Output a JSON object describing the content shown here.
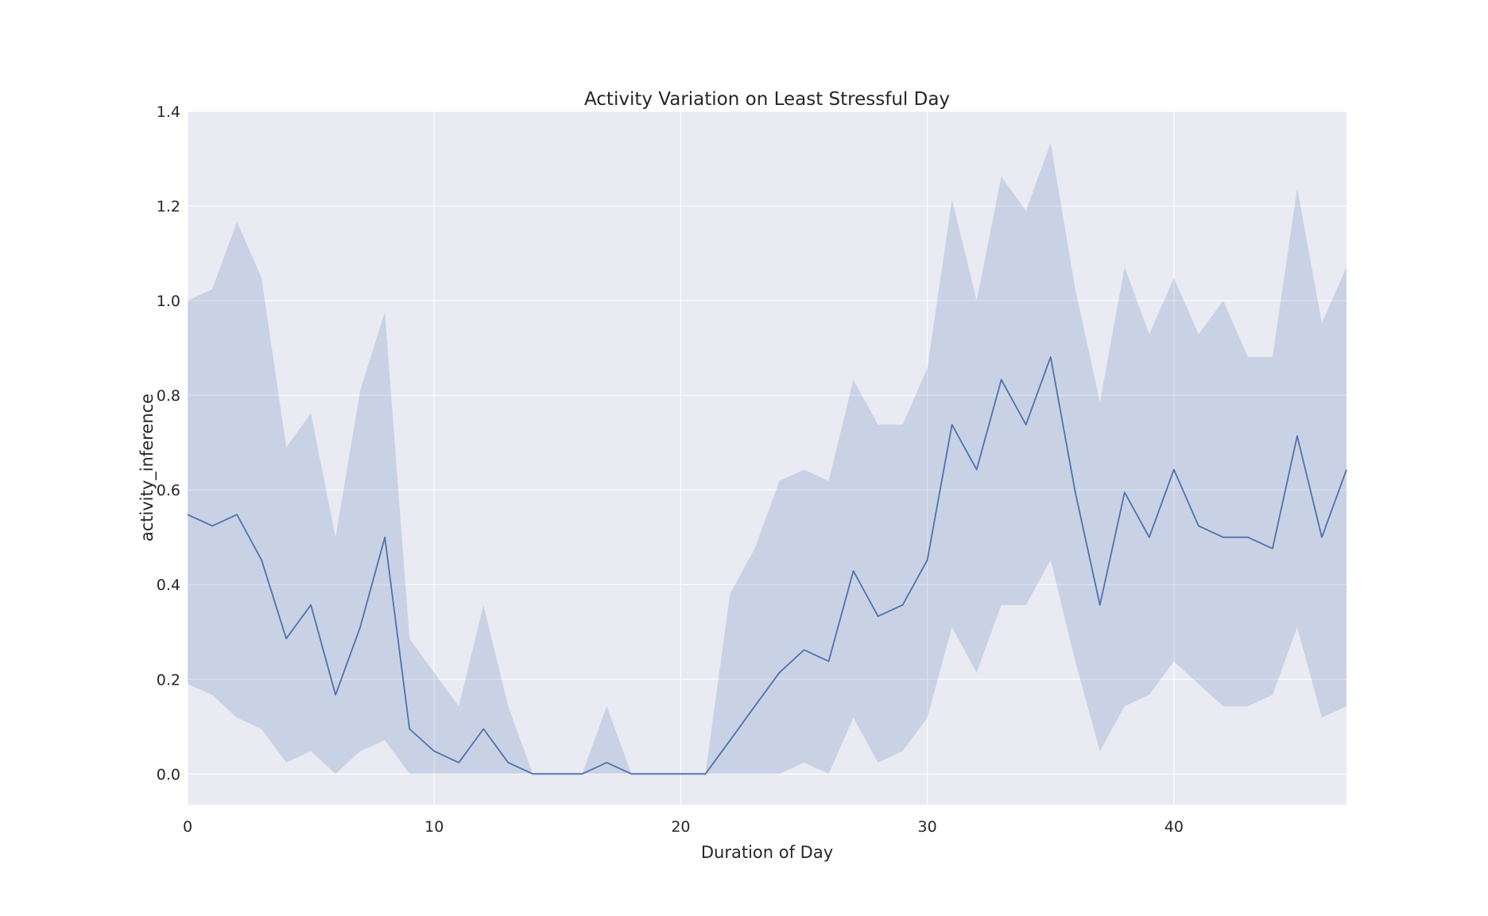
{
  "chart_data": {
    "type": "line",
    "title": "Activity Variation on Least Stressful Day",
    "xlabel": "Duration of Day",
    "ylabel": "activity_inference",
    "xlim": [
      0,
      47
    ],
    "ylim": [
      -0.065,
      1.4
    ],
    "xticks": [
      0,
      10,
      20,
      30,
      40
    ],
    "yticks": [
      0.0,
      0.2,
      0.4,
      0.6,
      0.8,
      1.0,
      1.2,
      1.4
    ],
    "ytick_labels": [
      "0.0",
      "0.2",
      "0.4",
      "0.6",
      "0.8",
      "1.0",
      "1.2",
      "1.4"
    ],
    "grid": true,
    "colors": {
      "line": "#4c72b0",
      "band": "#4c72b0",
      "background": "#e9eaf2",
      "grid": "#ffffff"
    },
    "x": [
      0,
      1,
      2,
      3,
      4,
      5,
      6,
      7,
      8,
      9,
      10,
      11,
      12,
      13,
      14,
      15,
      16,
      17,
      18,
      19,
      20,
      21,
      22,
      23,
      24,
      25,
      26,
      27,
      28,
      29,
      30,
      31,
      32,
      33,
      34,
      35,
      36,
      37,
      38,
      39,
      40,
      41,
      42,
      43,
      44,
      45,
      46,
      47
    ],
    "series": [
      {
        "values": [
          0.548,
          0.524,
          0.548,
          0.452,
          0.286,
          0.357,
          0.167,
          0.31,
          0.5,
          0.095,
          0.048,
          0.024,
          0.095,
          0.024,
          0.0,
          0.0,
          0.0,
          0.024,
          0.0,
          0.0,
          0.0,
          0.0,
          0.071,
          0.143,
          0.214,
          0.262,
          0.238,
          0.429,
          0.333,
          0.357,
          0.452,
          0.738,
          0.643,
          0.833,
          0.738,
          0.881,
          0.595,
          0.357,
          0.595,
          0.5,
          0.643,
          0.524,
          0.5,
          0.5,
          0.476,
          0.714,
          0.5,
          0.643
        ],
        "ci_lower": [
          0.19,
          0.167,
          0.119,
          0.095,
          0.024,
          0.048,
          0.0,
          0.048,
          0.071,
          0.0,
          0.0,
          0.0,
          0.0,
          0.0,
          0.0,
          0.0,
          0.0,
          0.0,
          0.0,
          0.0,
          0.0,
          0.0,
          0.0,
          0.0,
          0.0,
          0.024,
          0.0,
          0.119,
          0.024,
          0.048,
          0.119,
          0.31,
          0.214,
          0.357,
          0.357,
          0.452,
          0.238,
          0.048,
          0.143,
          0.167,
          0.238,
          0.19,
          0.143,
          0.143,
          0.167,
          0.31,
          0.119,
          0.143
        ],
        "ci_upper": [
          1.0,
          1.024,
          1.167,
          1.048,
          0.69,
          0.762,
          0.5,
          0.81,
          0.976,
          0.286,
          0.214,
          0.143,
          0.357,
          0.143,
          0.0,
          0.0,
          0.0,
          0.143,
          0.0,
          0.0,
          0.0,
          0.0,
          0.381,
          0.476,
          0.619,
          0.643,
          0.619,
          0.833,
          0.738,
          0.738,
          0.857,
          1.214,
          1.0,
          1.262,
          1.19,
          1.333,
          1.024,
          0.786,
          1.071,
          0.929,
          1.048,
          0.929,
          1.0,
          0.881,
          0.881,
          1.238,
          0.952,
          1.071
        ]
      }
    ]
  }
}
